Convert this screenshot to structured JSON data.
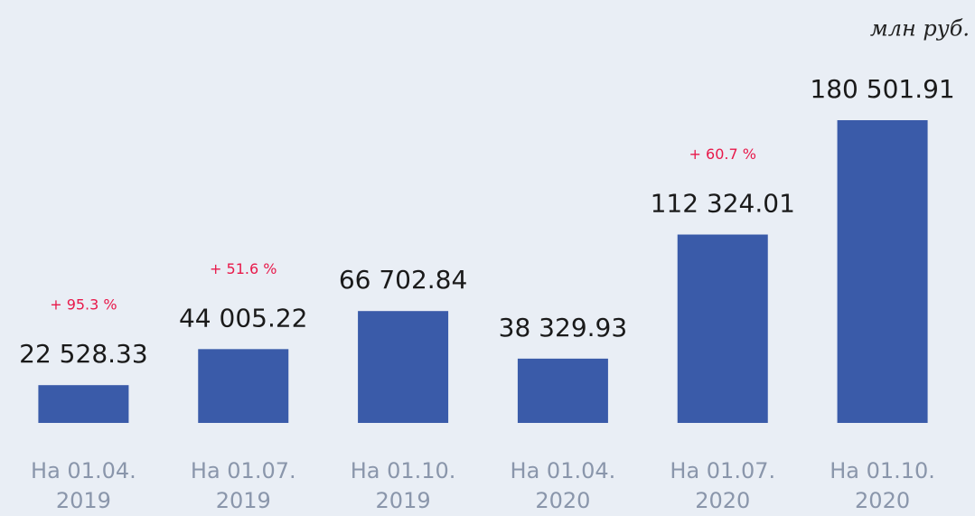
{
  "chart_data": {
    "type": "bar",
    "unit_label": "млн руб.",
    "categories": [
      [
        "На 01.04.",
        "2019"
      ],
      [
        "На 01.07.",
        "2019"
      ],
      [
        "На 01.10.",
        "2019"
      ],
      [
        "На 01.04.",
        "2020"
      ],
      [
        "На 01.07.",
        "2020"
      ],
      [
        "На 01.10.",
        "2020"
      ]
    ],
    "values": [
      22528.33,
      44005.22,
      66702.84,
      38329.93,
      112324.01,
      180501.91
    ],
    "value_labels": [
      "22 528.33",
      "44 005.22",
      "66 702.84",
      "38 329.93",
      "112 324.01",
      "180 501.91"
    ],
    "annotations": [
      "+ 95.3 %",
      "+ 51.6 %",
      null,
      null,
      "+ 60.7 %",
      null
    ],
    "color": "#3a5ba9",
    "annotation_color": "#e8194a",
    "ylim": [
      0,
      180501.91
    ]
  }
}
